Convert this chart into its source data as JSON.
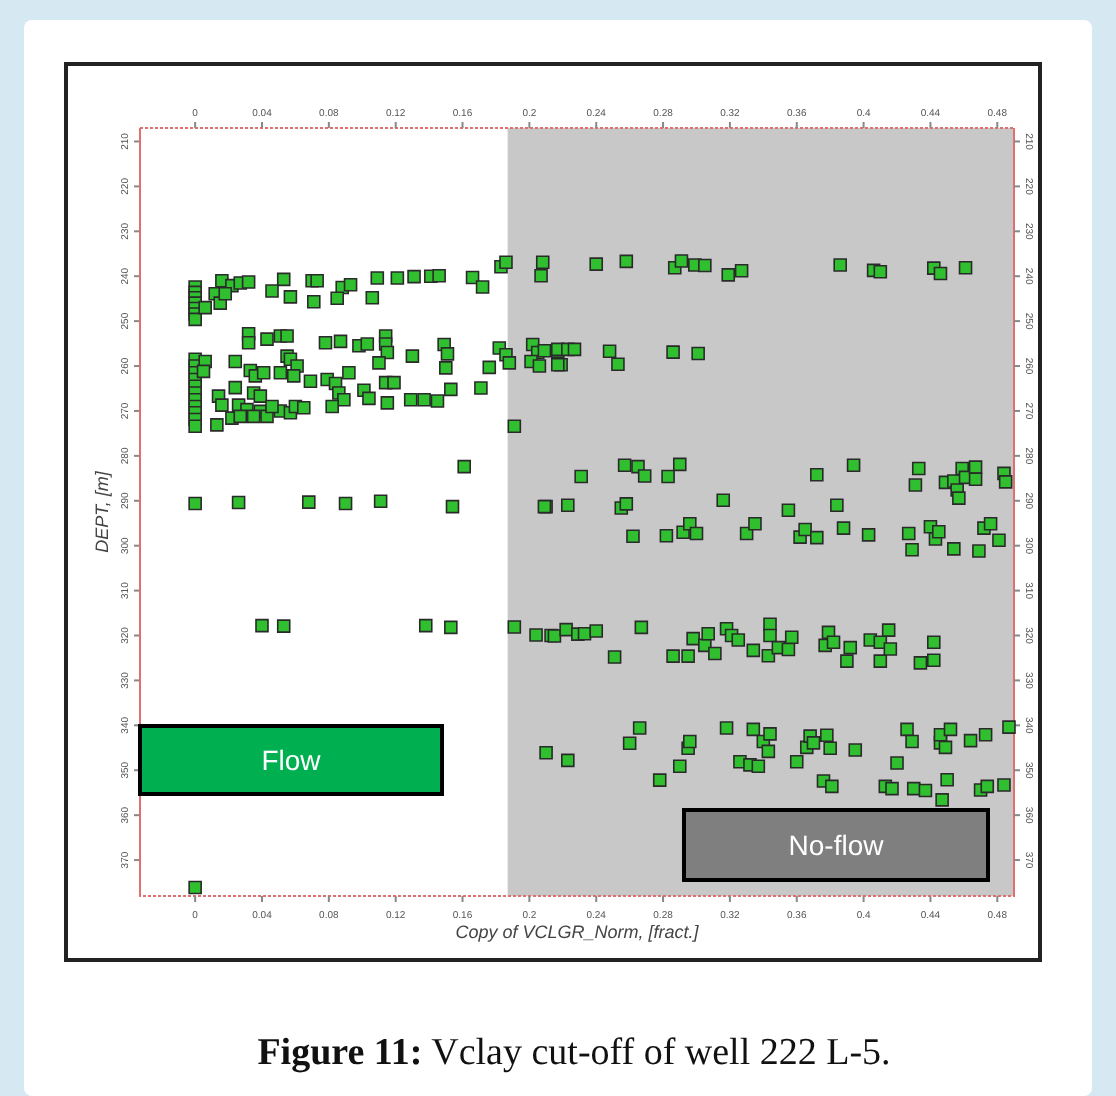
{
  "chart_data": {
    "type": "scatter",
    "xlabel": "Copy of VCLGR_Norm, [fract.]",
    "ylabel": "DEPT, [m]",
    "annotations": [
      "Flow",
      "No-flow",
      "Figure 11: Vclay cut-off of well 222 L-5."
    ],
    "xlim": [
      -0.033,
      0.49
    ],
    "xticks": [
      0,
      0.04,
      0.08,
      0.12,
      0.16,
      0.2,
      0.24,
      0.28,
      0.32,
      0.36,
      0.4,
      0.44,
      0.48
    ],
    "x2lim": [
      -0.033,
      0.49
    ],
    "x2ticks": [
      0,
      0.04,
      0.08,
      0.12,
      0.16,
      0.2,
      0.24,
      0.28,
      0.32,
      0.36,
      0.4,
      0.44,
      0.48
    ],
    "ylim": [
      378,
      207
    ],
    "yticks": [
      210,
      220,
      230,
      240,
      250,
      260,
      270,
      280,
      290,
      300,
      310,
      320,
      330,
      340,
      350,
      360,
      370
    ],
    "y2lim": [
      378,
      207
    ],
    "y2ticks": [
      210,
      220,
      230,
      240,
      250,
      260,
      270,
      280,
      290,
      300,
      310,
      320,
      330,
      340,
      350,
      360,
      370
    ],
    "bands": [
      {
        "axis": "x",
        "from": 0.187,
        "to": 0.49,
        "color": "#c8c8c8"
      }
    ],
    "grid": false,
    "marker": "square",
    "series": [
      {
        "color": "#2fbf2f",
        "x": [
          0.016,
          0.022,
          0.027,
          0.032,
          0.053,
          0.046,
          0.057,
          0.07,
          0.073,
          0.071,
          0.088,
          0.093,
          0.085,
          0.106,
          0.109,
          0.121,
          0.131,
          0.141,
          0.146,
          0.166,
          0.172,
          0.183,
          0.186,
          0.208,
          0.207,
          0,
          0,
          0,
          0,
          0,
          0,
          0,
          0.006,
          0.012,
          0.015,
          0.018,
          0.032,
          0.032,
          0.043,
          0.051,
          0.055,
          0.078,
          0.087,
          0.098,
          0.103,
          0.114,
          0.114,
          0.115,
          0.13,
          0.149,
          0.151,
          0.15,
          0.182,
          0.186,
          0.188,
          0.202,
          0.205,
          0.201,
          0.217,
          0.219,
          0,
          0,
          0,
          0,
          0,
          0,
          0,
          0,
          0,
          0,
          0,
          0.006,
          0.024,
          0.005,
          0.033,
          0.036,
          0.041,
          0.055,
          0.057,
          0.061,
          0.051,
          0.059,
          0.069,
          0.079,
          0.084,
          0.092,
          0.11,
          0.114,
          0.119,
          0.101,
          0.104,
          0.086,
          0.089,
          0.082,
          0.014,
          0.016,
          0.024,
          0.035,
          0.039,
          0.026,
          0.031,
          0.039,
          0.043,
          0.022,
          0.027,
          0.035,
          0.013,
          0.051,
          0.057,
          0.06,
          0.065,
          0.046,
          0.115,
          0.129,
          0.137,
          0.145,
          0.153,
          0.171,
          0.176,
          0.191,
          0.161,
          0,
          0.026,
          0.068,
          0.09,
          0.111,
          0.154,
          0.21,
          0.24,
          0.258,
          0.287,
          0.291,
          0.299,
          0.305,
          0.319,
          0.327,
          0.386,
          0.406,
          0.41,
          0.442,
          0.446,
          0.461,
          0.209,
          0.217,
          0.223,
          0.227,
          0.217,
          0.206,
          0.248,
          0.253,
          0.286,
          0.301,
          0.257,
          0.265,
          0.269,
          0.283,
          0.29,
          0.231,
          0.209,
          0.223,
          0.255,
          0.258,
          0.262,
          0.282,
          0.292,
          0.296,
          0.3,
          0.316,
          0.33,
          0.335,
          0.355,
          0.362,
          0.365,
          0.372,
          0.372,
          0.384,
          0.388,
          0.394,
          0.403,
          0.427,
          0.429,
          0.431,
          0.433,
          0.44,
          0.443,
          0.445,
          0.449,
          0.454,
          0.456,
          0.457,
          0.459,
          0.461,
          0.467,
          0.467,
          0.454,
          0.469,
          0.472,
          0.476,
          0.481,
          0.484,
          0.485,
          0.04,
          0.053,
          0.138,
          0.153,
          0.191,
          0.204,
          0.213,
          0.21,
          0,
          0.215,
          0.222,
          0.229,
          0.233,
          0.24,
          0.251,
          0.267,
          0.286,
          0.295,
          0.298,
          0.305,
          0.307,
          0.311,
          0.318,
          0.321,
          0.325,
          0.334,
          0.343,
          0.344,
          0.344,
          0.349,
          0.355,
          0.357,
          0.377,
          0.379,
          0.382,
          0.39,
          0.392,
          0.404,
          0.41,
          0.41,
          0.415,
          0.416,
          0.434,
          0.442,
          0.442,
          0.223,
          0.26,
          0.266,
          0.278,
          0.29,
          0.295,
          0.296,
          0.318,
          0.326,
          0.332,
          0.337,
          0.334,
          0.34,
          0.343,
          0.344,
          0.36,
          0.366,
          0.368,
          0.37,
          0.378,
          0.38,
          0.376,
          0.381,
          0.395,
          0.413,
          0.417,
          0.42,
          0.426,
          0.429,
          0.43,
          0.437,
          0.446,
          0.446,
          0.449,
          0.452,
          0.45,
          0.447,
          0.464,
          0.473,
          0.47,
          0.474,
          0.484,
          0.487
        ],
        "values": [
          241.0,
          242.1,
          241.5,
          241.3,
          240.7,
          243.3,
          244.6,
          241.0,
          241.0,
          245.7,
          242.5,
          241.9,
          244.9,
          244.8,
          240.4,
          240.4,
          240.1,
          240.0,
          239.9,
          240.3,
          242.4,
          237.9,
          236.9,
          236.9,
          239.9,
          242.4,
          243.6,
          244.8,
          246.0,
          247.2,
          248.4,
          249.6,
          247.0,
          243.9,
          246.0,
          243.9,
          252.8,
          254.8,
          254.0,
          253.3,
          253.3,
          254.8,
          254.5,
          255.5,
          255.1,
          253.3,
          255.1,
          257.0,
          257.8,
          255.2,
          257.3,
          260.4,
          256.0,
          257.5,
          259.3,
          255.2,
          257.0,
          259.0,
          256.7,
          259.7,
          258.5,
          260.0,
          261.5,
          263.0,
          264.5,
          266.0,
          267.5,
          269.0,
          270.4,
          271.9,
          273.4,
          259.0,
          259.0,
          261.2,
          261.0,
          262.2,
          261.5,
          257.8,
          258.5,
          260.0,
          261.5,
          262.2,
          263.4,
          263.0,
          263.9,
          261.5,
          259.3,
          263.7,
          263.7,
          265.4,
          267.2,
          266.0,
          267.5,
          269.0,
          266.7,
          268.7,
          264.8,
          266.0,
          266.7,
          268.7,
          269.7,
          270.1,
          271.2,
          271.6,
          271.2,
          271.2,
          273.1,
          270.0,
          270.4,
          269.0,
          269.3,
          269.0,
          268.2,
          267.5,
          267.5,
          267.8,
          265.2,
          264.9,
          260.3,
          273.4,
          282.4,
          290.6,
          290.4,
          290.3,
          290.6,
          290.1,
          291.3,
          291.3,
          237.3,
          236.7,
          238.1,
          236.6,
          237.5,
          237.6,
          239.7,
          238.8,
          237.5,
          238.7,
          239.0,
          238.2,
          239.4,
          238.1,
          256.6,
          256.3,
          256.3,
          256.3,
          259.7,
          260.0,
          256.7,
          259.6,
          256.9,
          257.2,
          282.1,
          282.4,
          284.5,
          284.6,
          281.9,
          284.6,
          291.3,
          291.0,
          291.6,
          290.7,
          297.9,
          297.8,
          297.0,
          295.1,
          297.3,
          289.9,
          297.3,
          295.1,
          292.1,
          298.1,
          296.4,
          298.2,
          284.2,
          291.0,
          296.1,
          282.1,
          297.6,
          297.3,
          300.9,
          286.5,
          282.8,
          295.8,
          298.5,
          296.9,
          285.9,
          285.6,
          287.6,
          289.4,
          282.8,
          284.8,
          282.5,
          285.2,
          300.7,
          301.2,
          296.1,
          295.1,
          298.8,
          283.9,
          285.8,
          317.8,
          317.9,
          317.8,
          318.2,
          318.1,
          319.9,
          320.0,
          346.1,
          376.1,
          320.1,
          318.7,
          319.7,
          319.6,
          319.0,
          324.8,
          318.2,
          324.6,
          324.6,
          320.7,
          322.2,
          319.6,
          324.0,
          318.5,
          320.0,
          321.0,
          323.3,
          324.5,
          317.5,
          320.0,
          322.7,
          323.1,
          320.4,
          322.2,
          319.3,
          321.5,
          325.7,
          322.7,
          321.0,
          325.7,
          321.5,
          318.8,
          323.0,
          326.1,
          321.5,
          325.5,
          347.8,
          344.0,
          340.6,
          352.2,
          349.1,
          345.1,
          343.6,
          340.6,
          348.1,
          348.8,
          349.1,
          340.9,
          343.6,
          345.8,
          341.9,
          348.1,
          344.9,
          342.4,
          343.9,
          342.2,
          345.1,
          352.4,
          353.6,
          345.5,
          353.6,
          354.1,
          348.4,
          340.9,
          343.6,
          354.1,
          354.5,
          343.9,
          342.1,
          344.9,
          340.9,
          352.1,
          356.6,
          343.4,
          342.1,
          354.4,
          353.6,
          353.3,
          340.4
        ]
      }
    ]
  }
}
